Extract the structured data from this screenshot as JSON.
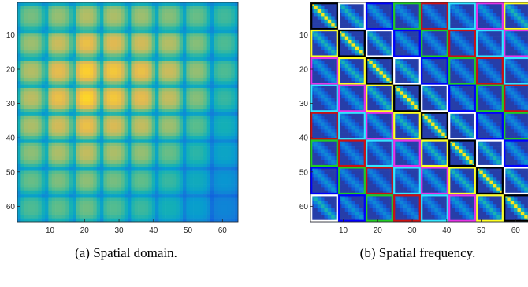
{
  "figure": {
    "captions": [
      {
        "label": "(a)",
        "text": "Spatial domain."
      },
      {
        "label": "(b)",
        "text": "Spatial frequency."
      }
    ]
  },
  "chart_data": [
    {
      "type": "heatmap",
      "title": "",
      "xlabel": "",
      "ylabel": "",
      "xlim": [
        0.5,
        64.5
      ],
      "ylim": [
        0.5,
        64.5
      ],
      "xticks": [
        10,
        20,
        30,
        40,
        50,
        60
      ],
      "yticks": [
        10,
        20,
        30,
        40,
        50,
        60
      ],
      "grid": false,
      "matrix_size": 64,
      "block_size": 8,
      "colormap": "parula",
      "palette": {
        "low": "#2b8fd6",
        "mid": "#5cbf8a",
        "high": "#f5d418",
        "peak": "#ffe817"
      },
      "block_center_intensity": [
        [
          0.72,
          0.76,
          0.8,
          0.79,
          0.77,
          0.74,
          0.7,
          0.64
        ],
        [
          0.77,
          0.83,
          0.88,
          0.86,
          0.84,
          0.8,
          0.74,
          0.66
        ],
        [
          0.8,
          0.87,
          0.92,
          0.9,
          0.88,
          0.83,
          0.76,
          0.66
        ],
        [
          0.81,
          0.88,
          0.93,
          0.9,
          0.87,
          0.82,
          0.74,
          0.62
        ],
        [
          0.79,
          0.84,
          0.88,
          0.85,
          0.82,
          0.77,
          0.68,
          0.55
        ],
        [
          0.75,
          0.79,
          0.82,
          0.79,
          0.76,
          0.7,
          0.6,
          0.48
        ],
        [
          0.7,
          0.73,
          0.75,
          0.72,
          0.69,
          0.62,
          0.52,
          0.4
        ],
        [
          0.66,
          0.69,
          0.71,
          0.67,
          0.63,
          0.55,
          0.45,
          0.32
        ]
      ]
    },
    {
      "type": "heatmap",
      "title": "",
      "xlabel": "",
      "ylabel": "",
      "xlim": [
        0.5,
        64.5
      ],
      "ylim": [
        0.5,
        64.5
      ],
      "xticks": [
        10,
        20,
        30,
        40,
        50,
        60
      ],
      "yticks": [
        10,
        20,
        30,
        40,
        50,
        60
      ],
      "grid": false,
      "matrix_size": 64,
      "block_size": 8,
      "colormap": "parula",
      "background_color": "#3d3899",
      "description_of_structure": "block-circulant: each 8x8 block has a diagonal band; block outline color depends on (column - row) mod 8",
      "offset_border_colors": [
        "#000000",
        "#ffffff",
        "#0000ff",
        "#22cc22",
        "#cc1111",
        "#33e6ff",
        "#e633e6",
        "#ffff22"
      ],
      "offset_band_strength": [
        1.0,
        0.55,
        0.35,
        0.28,
        0.25,
        0.28,
        0.35,
        0.55
      ]
    }
  ]
}
